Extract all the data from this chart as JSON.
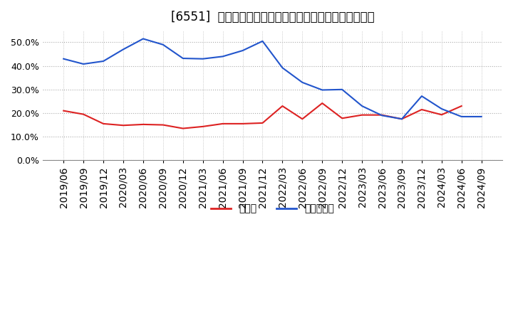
{
  "title": "[6551]  現預金、有利子負債の総資産に対する比率の推移",
  "x_labels": [
    "2019/06",
    "2019/09",
    "2019/12",
    "2020/03",
    "2020/06",
    "2020/09",
    "2020/12",
    "2021/03",
    "2021/06",
    "2021/09",
    "2021/12",
    "2022/03",
    "2022/06",
    "2022/09",
    "2022/12",
    "2023/03",
    "2023/06",
    "2023/09",
    "2023/12",
    "2024/03",
    "2024/06",
    "2024/09"
  ],
  "cash_ratio": [
    0.21,
    0.195,
    0.155,
    0.148,
    0.152,
    0.15,
    0.135,
    0.143,
    0.155,
    0.155,
    0.158,
    0.23,
    0.175,
    0.242,
    0.178,
    0.192,
    0.192,
    0.175,
    0.215,
    0.193,
    0.23,
    null
  ],
  "debt_ratio": [
    0.43,
    0.408,
    0.42,
    0.47,
    0.515,
    0.49,
    0.432,
    0.43,
    0.44,
    0.465,
    0.505,
    0.392,
    0.33,
    0.298,
    0.3,
    0.23,
    0.19,
    0.175,
    0.272,
    0.218,
    0.185,
    0.185
  ],
  "cash_color": "#dd2222",
  "debt_color": "#2255cc",
  "background_color": "#ffffff",
  "grid_color": "#aaaaaa",
  "ylim": [
    0.0,
    0.55
  ],
  "yticks": [
    0.0,
    0.1,
    0.2,
    0.3,
    0.4,
    0.5
  ],
  "legend_cash": "現預金",
  "legend_debt": "有利子負債",
  "title_fontsize": 12
}
